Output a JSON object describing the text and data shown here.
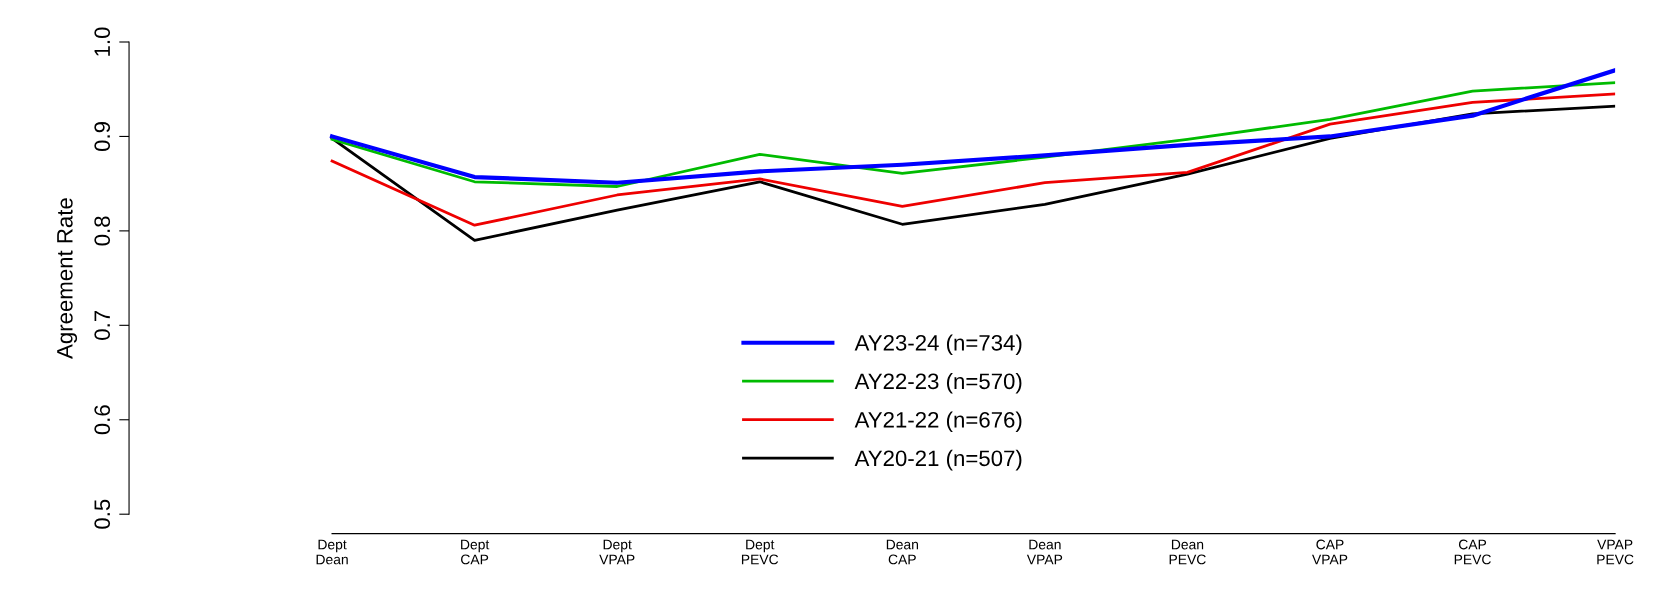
{
  "chart_data": {
    "type": "line",
    "ylabel": "Agreement Rate",
    "categories": [
      "Dept\nDean",
      "Dept\nCAP",
      "Dept\nVPAP",
      "Dept\nPEVC",
      "Dean\nCAP",
      "Dean\nVPAP",
      "Dean\nPEVC",
      "CAP\nVPAP",
      "CAP\nPEVC",
      "VPAP\nPEVC"
    ],
    "series": [
      {
        "name": "AY23-24 (n=734)",
        "color": "#0000ff",
        "values": [
          0.9,
          0.857,
          0.851,
          0.863,
          0.87,
          0.88,
          0.891,
          0.9,
          0.922,
          0.97
        ]
      },
      {
        "name": "AY22-23 (n=570)",
        "color": "#00bb00",
        "values": [
          0.897,
          0.852,
          0.847,
          0.881,
          0.861,
          0.878,
          0.897,
          0.918,
          0.948,
          0.957
        ]
      },
      {
        "name": "AY21-22 (n=676)",
        "color": "#ee0000",
        "values": [
          0.874,
          0.806,
          0.838,
          0.855,
          0.826,
          0.851,
          0.862,
          0.913,
          0.936,
          0.945
        ]
      },
      {
        "name": "AY20-21 (n=507)",
        "color": "#000000",
        "values": [
          0.898,
          0.79,
          0.822,
          0.852,
          0.807,
          0.828,
          0.86,
          0.898,
          0.924,
          0.932
        ]
      }
    ],
    "ylim": [
      0.5,
      1.0
    ],
    "yticks": [
      {
        "value": 0.5,
        "label": "0.5"
      },
      {
        "value": 0.6,
        "label": "0.6"
      },
      {
        "value": 0.7,
        "label": "0.7"
      },
      {
        "value": 0.8,
        "label": "0.8"
      },
      {
        "value": 0.9,
        "label": "0.9"
      },
      {
        "value": 1.0,
        "label": "1.0"
      }
    ],
    "grid": false,
    "legend": "bottom",
    "line_style": "solid",
    "marker": "none"
  }
}
